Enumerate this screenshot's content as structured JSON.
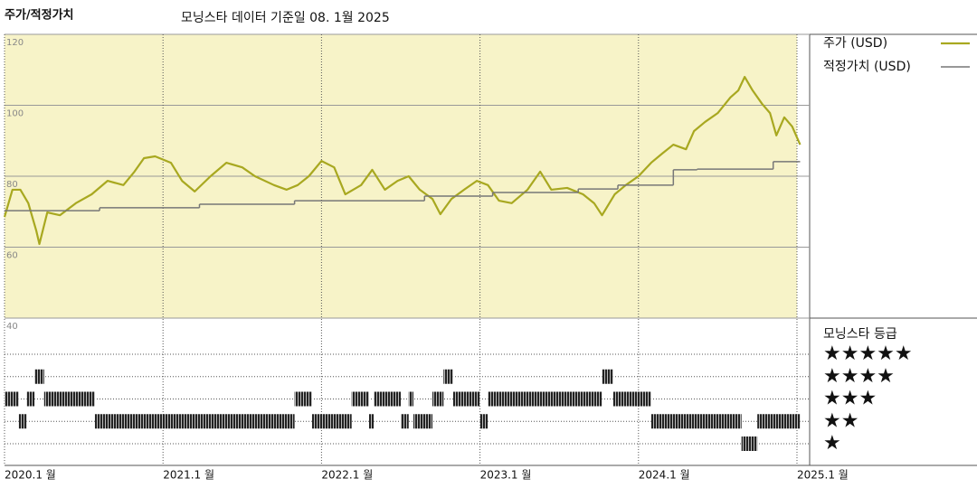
{
  "chart_data": {
    "type": "line",
    "title": "주가/적정가치",
    "subtitle": "모닝스타 데이터 기준일 08. 1월 2025",
    "xlim": [
      2020.0,
      2025.08
    ],
    "xticks": [
      {
        "value": 2020,
        "label": "2020.1 월"
      },
      {
        "value": 2021,
        "label": "2021.1 월"
      },
      {
        "value": 2022,
        "label": "2022.1 월"
      },
      {
        "value": 2023,
        "label": "2023.1 월"
      },
      {
        "value": 2024,
        "label": "2024.1 월"
      },
      {
        "value": 2025,
        "label": "2025.1 월"
      }
    ],
    "ylim": [
      40,
      120
    ],
    "yticks": [
      40,
      60,
      80,
      100,
      120
    ],
    "grid": true,
    "series": [
      {
        "name": "주가 (USD)",
        "color": "#a8a820",
        "x": [
          2020.0,
          2020.05,
          2020.1,
          2020.15,
          2020.2,
          2020.22,
          2020.27,
          2020.35,
          2020.45,
          2020.55,
          2020.65,
          2020.75,
          2020.82,
          2020.88,
          2020.95,
          2021.05,
          2021.12,
          2021.2,
          2021.3,
          2021.4,
          2021.5,
          2021.58,
          2021.7,
          2021.78,
          2021.85,
          2021.92,
          2022.0,
          2022.08,
          2022.15,
          2022.25,
          2022.32,
          2022.4,
          2022.48,
          2022.55,
          2022.62,
          2022.7,
          2022.75,
          2022.82,
          2022.9,
          2022.98,
          2023.05,
          2023.12,
          2023.2,
          2023.3,
          2023.38,
          2023.45,
          2023.55,
          2023.65,
          2023.72,
          2023.77,
          2023.85,
          2023.92,
          2024.0,
          2024.08,
          2024.15,
          2024.22,
          2024.3,
          2024.35,
          2024.42,
          2024.5,
          2024.58,
          2024.63,
          2024.67,
          2024.72,
          2024.78,
          2024.83,
          2024.87,
          2024.92,
          2024.97,
          2025.02
        ],
        "values": [
          68.5,
          76.2,
          76.2,
          72.4,
          64.7,
          60.9,
          69.8,
          69,
          72.4,
          74.9,
          78.7,
          77.5,
          81.3,
          85.1,
          85.6,
          83.8,
          78.7,
          75.7,
          80,
          83.8,
          82.5,
          80,
          77.5,
          76.2,
          77.5,
          80,
          84.3,
          82.5,
          74.9,
          77.5,
          81.8,
          76.2,
          78.7,
          80,
          76.2,
          73.6,
          69.3,
          73.6,
          76.2,
          78.7,
          77.5,
          73.1,
          72.4,
          76.2,
          81.3,
          76.2,
          76.7,
          74.9,
          72.4,
          69,
          74.9,
          77.5,
          80,
          83.8,
          86.4,
          88.9,
          87.6,
          92.7,
          95.3,
          97.8,
          102.2,
          104.2,
          108,
          104.2,
          100.4,
          97.8,
          91.5,
          96.6,
          94,
          88.9
        ]
      },
      {
        "name": "적정가치 (USD)",
        "color": "#777777",
        "edges": [
          2020.0,
          2020.6,
          2021.23,
          2021.83,
          2022.65,
          2023.08,
          2023.62,
          2023.87,
          2024.22,
          2024.37,
          2024.85,
          2025.02
        ],
        "values": [
          70.3,
          71.1,
          72.1,
          73.1,
          74.4,
          75.4,
          76.4,
          77.5,
          81.8,
          82.0,
          84.1
        ]
      }
    ],
    "rating": {
      "title": "모닝스타 등급",
      "levels": [
        5,
        4,
        3,
        2,
        1
      ],
      "level_labels": [
        "★★★★★",
        "★★★★",
        "★★★",
        "★★",
        "★"
      ],
      "edges": [
        2020.0,
        2020.09,
        2020.14,
        2020.19,
        2020.25,
        2020.57,
        2021.83,
        2021.94,
        2022.19,
        2022.3,
        2022.33,
        2022.5,
        2022.55,
        2022.58,
        2022.7,
        2022.77,
        2022.83,
        2023.0,
        2023.05,
        2023.77,
        2023.84,
        2024.08,
        2024.65,
        2024.75,
        2025.02
      ],
      "values": [
        3,
        2,
        3,
        4,
        3,
        2,
        3,
        2,
        3,
        2,
        3,
        2,
        3,
        2,
        3,
        4,
        3,
        2,
        3,
        4,
        3,
        2,
        1,
        2
      ]
    }
  }
}
